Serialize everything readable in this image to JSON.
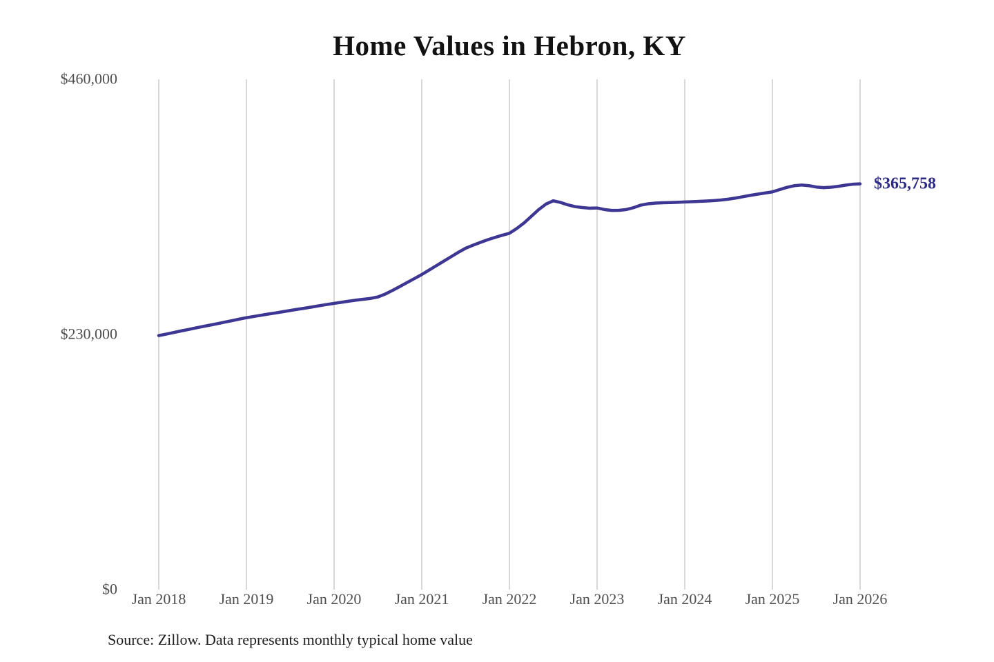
{
  "title": "Home Values in Hebron, KY",
  "end_label": "$365,758",
  "source_note": "Source: Zillow. Data represents monthly typical home value",
  "colors": {
    "line": "#3d3693",
    "end_label": "#2e2b87",
    "gridline": "#c7c7c7",
    "axis_label": "#4f4f4f",
    "title": "#121212",
    "background": "#ffffff"
  },
  "chart_data": {
    "type": "line",
    "title": "Home Values in Hebron, KY",
    "xlabel": "",
    "ylabel": "",
    "ylim": [
      0,
      460000
    ],
    "grid": "vertical-only",
    "legend": "none",
    "x_tick_labels": [
      "Jan 2018",
      "Jan 2019",
      "Jan 2020",
      "Jan 2021",
      "Jan 2022",
      "Jan 2023",
      "Jan 2024",
      "Jan 2025",
      "Jan 2026"
    ],
    "y_ticks": [
      {
        "label": "$0",
        "value": 0
      },
      {
        "label": "$230,000",
        "value": 230000
      },
      {
        "label": "$460,000",
        "value": 460000
      }
    ],
    "annotation": {
      "text": "$365,758",
      "position": "line-end"
    },
    "series": [
      {
        "name": "Typical home value",
        "interval": "monthly",
        "x_start": "Jan 2018",
        "x_end": "Jan 2026",
        "latest_value": 365758,
        "values": [
          229000,
          230300,
          231700,
          233100,
          234400,
          235800,
          237100,
          238400,
          239700,
          241100,
          242400,
          243800,
          245100,
          246200,
          247300,
          248400,
          249400,
          250500,
          251600,
          252700,
          253700,
          254800,
          255900,
          257000,
          258000,
          259000,
          260000,
          260900,
          261700,
          262500,
          263800,
          266400,
          269700,
          273200,
          276800,
          280400,
          284000,
          288000,
          292000,
          296000,
          300000,
          304000,
          307700,
          310400,
          312900,
          315300,
          317400,
          319400,
          321200,
          325500,
          330500,
          336500,
          342500,
          347500,
          350500,
          349000,
          346800,
          345200,
          344400,
          343800,
          344000,
          342600,
          341800,
          341900,
          342600,
          344300,
          346600,
          347800,
          348400,
          348700,
          348900,
          349100,
          349400,
          349700,
          350000,
          350300,
          350700,
          351200,
          352000,
          353000,
          354200,
          355400,
          356500,
          357500,
          358500,
          360600,
          362600,
          364100,
          364700,
          364100,
          362900,
          362300,
          362700,
          363500,
          364600,
          365400,
          365758
        ]
      }
    ]
  }
}
